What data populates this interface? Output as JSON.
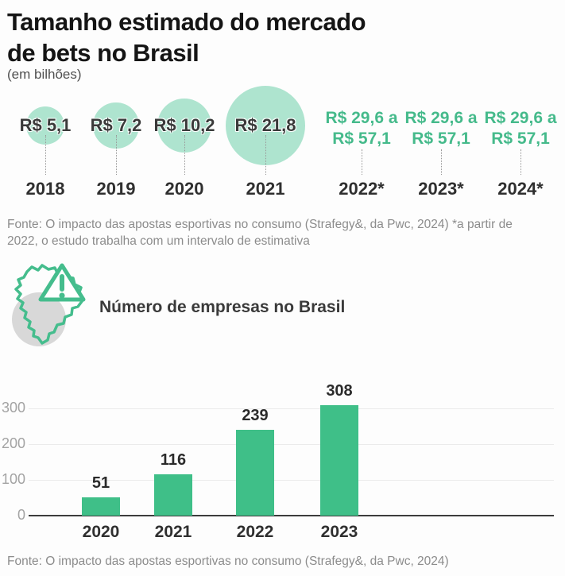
{
  "header": {
    "title_line1": "Tamanho estimado do mercado",
    "title_line2": "de bets no Brasil",
    "subtitle": "(em bilhões)"
  },
  "bubble_section": {
    "source": "Fonte: O impacto das apostas esportivas no consumo (Strafegy&, da Pwc, 2024) *a partir de 2022, o estudo trabalha com um intervalo de estimativa"
  },
  "companies_section": {
    "heading": "Número de empresas no Brasil",
    "icon": "brazil-map-warning-icon",
    "source": "Fonte: O impacto das apostas esportivas no consumo (Strafegy&, da Pwc, 2024)"
  },
  "colors": {
    "bubble_fill": "#aee4cf",
    "bar_fill": "#3fbf88",
    "range_text_green": "#45ba8b",
    "icon_green": "#45bd8d",
    "icon_gray": "#d8d8d8",
    "dark_text": "#2f2f2f",
    "gray_text": "#8c8c8c"
  },
  "chart_data": [
    {
      "type": "bubble",
      "title": "Tamanho estimado do mercado de bets no Brasil",
      "subtitle": "(em bilhões)",
      "unit": "R$ bilhões",
      "categories": [
        "2018",
        "2019",
        "2020",
        "2021",
        "2022*",
        "2023*",
        "2024*"
      ],
      "values": [
        5.1,
        7.2,
        10.2,
        21.8,
        null,
        null,
        null
      ],
      "value_labels": [
        "R$ 5,1",
        "R$ 7,2",
        "R$ 10,2",
        "R$ 21,8",
        "R$ 29,6 a\nR$ 57,1",
        "R$ 29,6 a\nR$ 57,1",
        "R$ 29,6 a\nR$ 57,1"
      ],
      "range_values": [
        [
          29.6,
          57.1
        ],
        [
          29.6,
          57.1
        ],
        [
          29.6,
          57.1
        ]
      ],
      "note": "*a partir de 2022, o estudo trabalha com um intervalo de estimativa"
    },
    {
      "type": "bar",
      "title": "Número de empresas no Brasil",
      "categories": [
        "2020",
        "2021",
        "2022",
        "2023"
      ],
      "values": [
        51,
        116,
        239,
        308
      ],
      "xlabel": "",
      "ylabel": "",
      "ylim": [
        0,
        340
      ],
      "yticks": [
        0,
        100,
        200,
        300
      ],
      "grid": true,
      "legend": false
    }
  ]
}
